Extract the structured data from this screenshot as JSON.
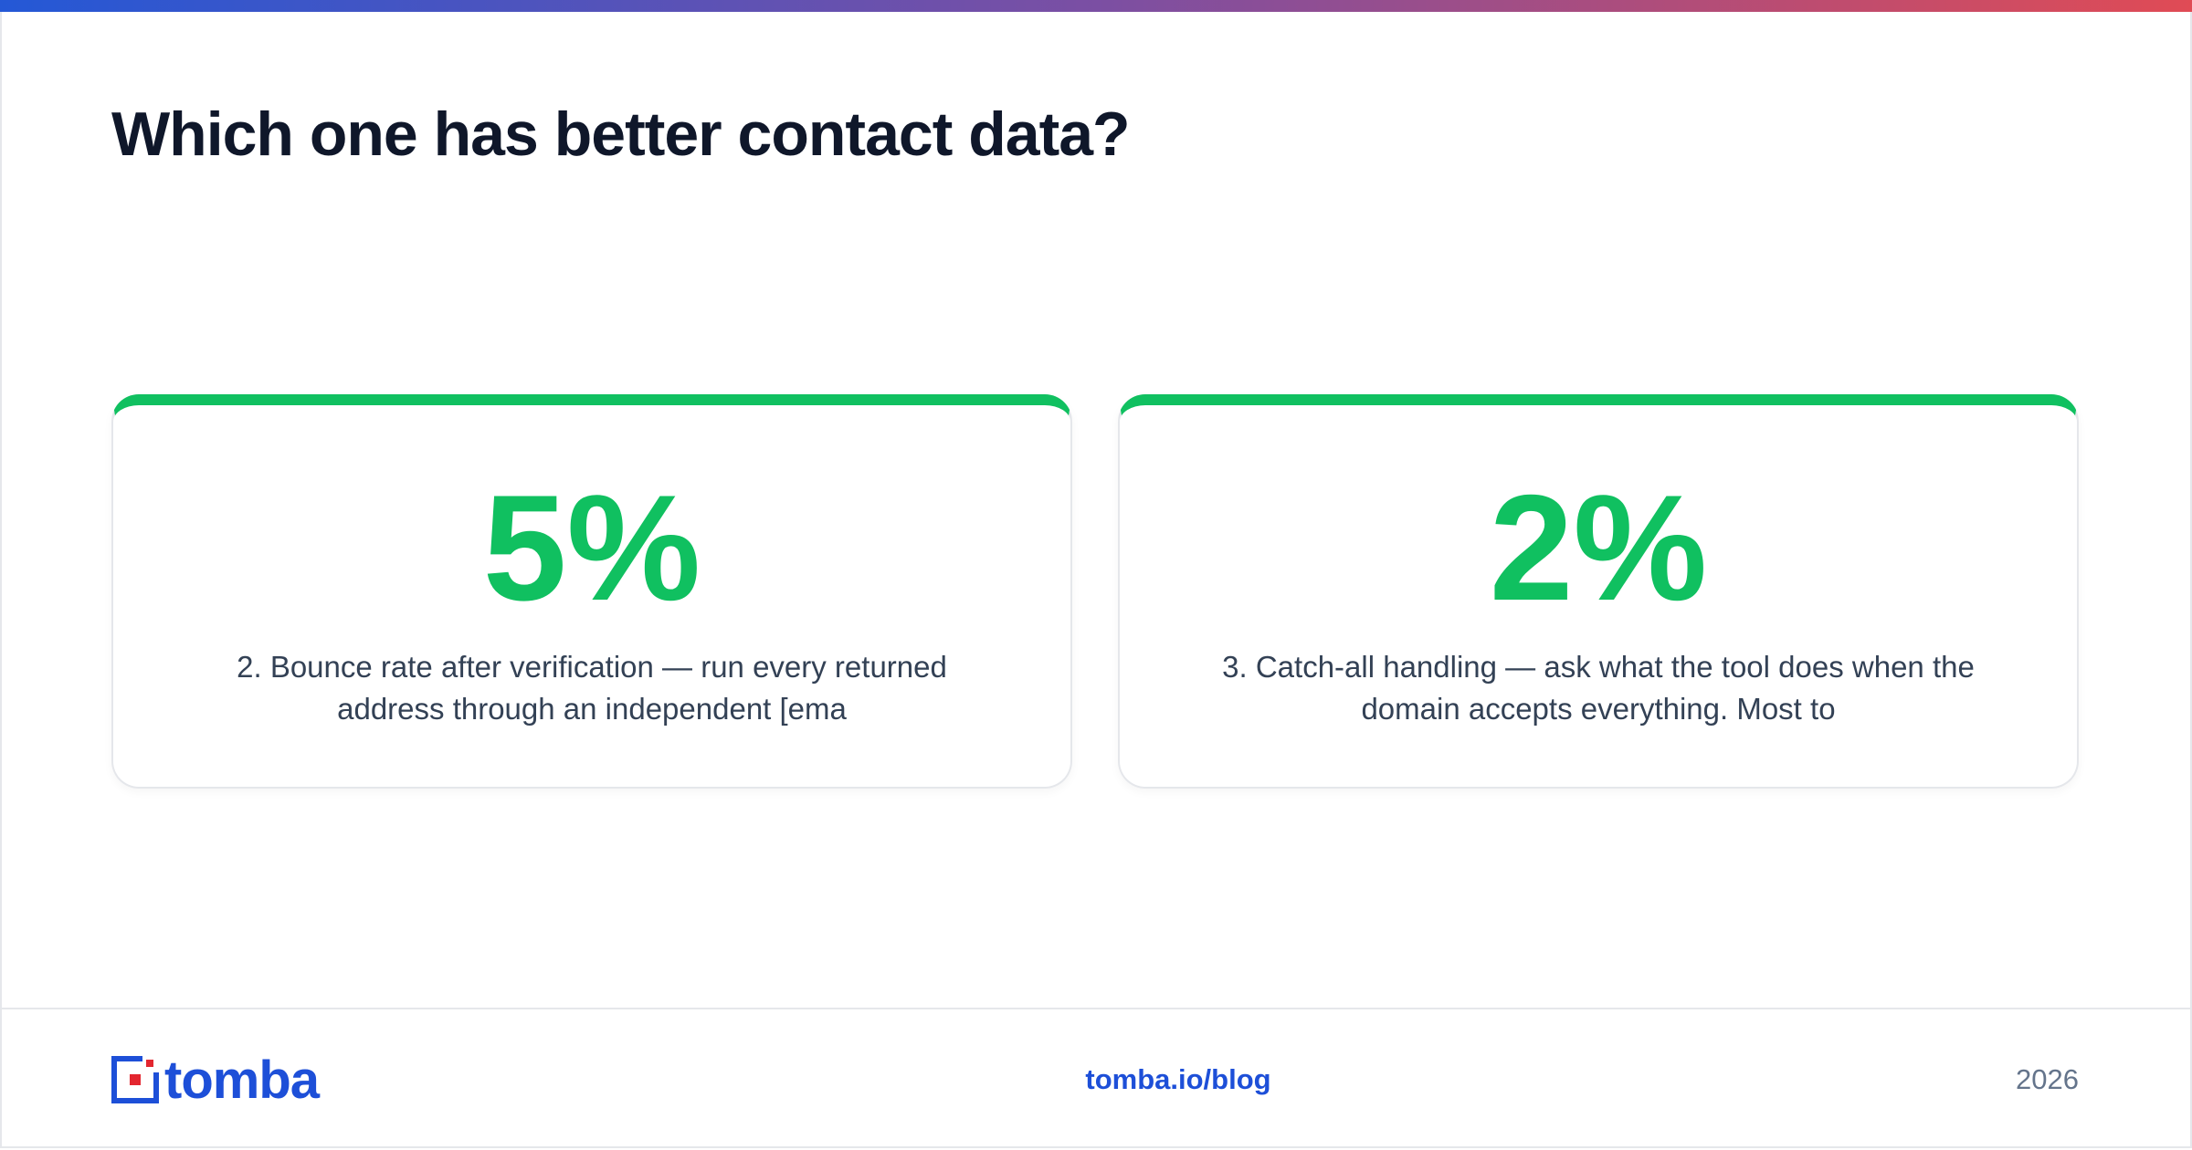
{
  "header": {
    "title": "Which one has better contact data?"
  },
  "cards": [
    {
      "stat": "5%",
      "text": "2. Bounce rate after verification — run every returned address through an independent [ema"
    },
    {
      "stat": "2%",
      "text": "3. Catch-all handling — ask what the tool does when the domain accepts everything. Most to"
    }
  ],
  "footer": {
    "brand": "tomba",
    "link": "tomba.io/blog",
    "year": "2026"
  }
}
